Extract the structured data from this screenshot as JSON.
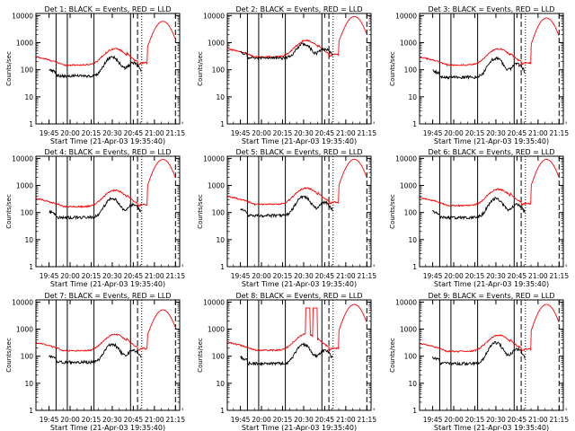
{
  "panel_titles": [
    "Det 1: BLACK = Events, RED = LLD",
    "Det 2: BLACK = Events, RED = LLD",
    "Det 3: BLACK = Events, RED = LLD",
    "Det 4: BLACK = Events, RED = LLD",
    "Det 5: BLACK = Events, RED = LLD",
    "Det 6: BLACK = Events, RED = LLD",
    "Det 7: BLACK = Events, RED = LLD",
    "Det 8: BLACK = Events, RED = LLD",
    "Det 9: BLACK = Events, RED = LLD"
  ],
  "xlabel": "Start Time (21-Apr-03 19:35:40)",
  "ylabel": "Counts/sec",
  "xticks": [
    "19:45",
    "20:00",
    "20:15",
    "20:30",
    "20:45",
    "21:00",
    "21:15"
  ],
  "yticks": [
    "1",
    "10",
    "100",
    "1000",
    "10000"
  ],
  "colors": {
    "events": "#000000",
    "lld": "#ff0000"
  },
  "chart_data": {
    "type": "line",
    "y_scale": "log",
    "ylim": [
      1,
      12000
    ],
    "xlim": [
      "19:35:40",
      "21:18:00"
    ],
    "marker_lines_solid": [
      "19:50:00",
      "19:58:00",
      "20:17:00",
      "20:43:00"
    ],
    "marker_lines_dashed": [
      "20:48:00",
      "21:15:00"
    ],
    "marker_lines_dotted": [
      "20:51:00"
    ],
    "series": [
      {
        "name": "Events",
        "color": "#000000"
      },
      {
        "name": "LLD",
        "color": "#ff0000"
      }
    ],
    "panels": [
      {
        "lld_base": 300,
        "ev_base": 100,
        "ev_bump": 1.0,
        "lld_peak": 6000,
        "spikes": []
      },
      {
        "lld_base": 600,
        "ev_base": 450,
        "ev_bump": 0.6,
        "lld_peak": 9000,
        "spikes": []
      },
      {
        "lld_base": 300,
        "ev_base": 90,
        "ev_bump": 1.0,
        "lld_peak": 8000,
        "spikes": []
      },
      {
        "lld_base": 330,
        "ev_base": 110,
        "ev_bump": 1.0,
        "lld_peak": 9000,
        "spikes": []
      },
      {
        "lld_base": 400,
        "ev_base": 130,
        "ev_bump": 1.0,
        "lld_peak": 9000,
        "spikes": []
      },
      {
        "lld_base": 360,
        "ev_base": 110,
        "ev_bump": 1.0,
        "lld_peak": 9000,
        "spikes": []
      },
      {
        "lld_base": 320,
        "ev_base": 100,
        "ev_bump": 0.9,
        "lld_peak": 5000,
        "spikes": []
      },
      {
        "lld_base": 330,
        "ev_base": 90,
        "ev_bump": 1.0,
        "lld_peak": 8000,
        "spikes": [
          "20:33:00",
          "20:38:00"
        ]
      },
      {
        "lld_base": 300,
        "ev_base": 90,
        "ev_bump": 1.2,
        "lld_peak": 8000,
        "spikes": []
      }
    ]
  }
}
